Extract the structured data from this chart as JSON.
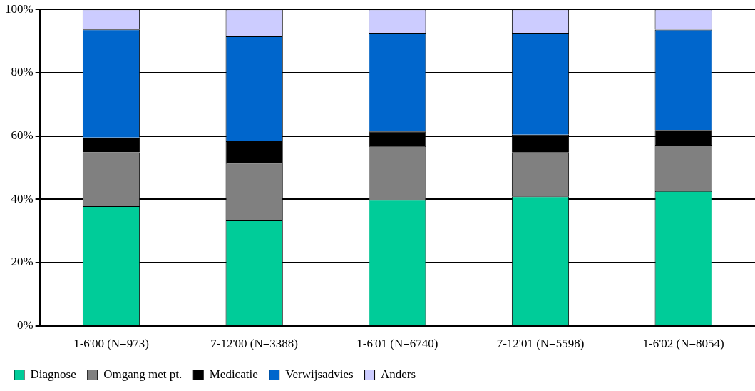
{
  "chart_data": {
    "type": "bar",
    "stacked": true,
    "categories": [
      "1-6'00 (N=973)",
      "7-12'00 (N=3388)",
      "1-6'01 (N=6740)",
      "7-12'01 (N=5598)",
      "1-6'02 (N=8054)"
    ],
    "series": [
      {
        "name": "Diagnose",
        "color": "#00cc99",
        "values": [
          37.8,
          33.3,
          39.8,
          40.9,
          42.6
        ]
      },
      {
        "name": "Omgang met pt.",
        "color": "#808080",
        "values": [
          17.0,
          18.2,
          17.0,
          14.0,
          14.6
        ]
      },
      {
        "name": "Medicatie",
        "color": "#000000",
        "values": [
          4.7,
          6.8,
          4.6,
          5.5,
          4.7
        ]
      },
      {
        "name": "Verwijsadvies",
        "color": "#0066cc",
        "values": [
          34.2,
          33.2,
          31.2,
          32.2,
          31.7
        ]
      },
      {
        "name": "Anders",
        "color": "#ccccff",
        "values": [
          6.3,
          8.5,
          7.4,
          7.4,
          6.4
        ]
      }
    ],
    "ylim": [
      0,
      100
    ],
    "yticks": [
      {
        "value": 0,
        "label": "0%"
      },
      {
        "value": 20,
        "label": "20%"
      },
      {
        "value": 40,
        "label": "40%"
      },
      {
        "value": 60,
        "label": "60%"
      },
      {
        "value": 80,
        "label": "80%"
      },
      {
        "value": 100,
        "label": "100%"
      }
    ],
    "grid": "y",
    "legend": "bottom left"
  }
}
